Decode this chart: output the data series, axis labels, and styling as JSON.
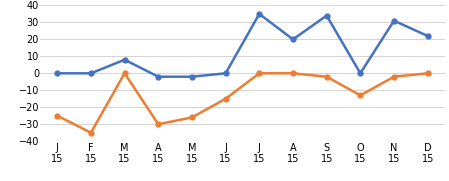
{
  "x_labels_line1": [
    "J",
    "F",
    "M",
    "A",
    "M",
    "J",
    "J",
    "A",
    "S",
    "O",
    "N",
    "D"
  ],
  "x_labels_line2": [
    "15",
    "15",
    "15",
    "15",
    "15",
    "15",
    "15",
    "15",
    "15",
    "15",
    "15",
    "15"
  ],
  "blue_values": [
    0,
    0,
    8,
    -2,
    -2,
    0,
    35,
    20,
    34,
    0,
    31,
    22
  ],
  "orange_values": [
    -25,
    -35,
    0,
    -30,
    -26,
    -15,
    0,
    0,
    -2,
    -13,
    -2,
    0
  ],
  "blue_color": "#4472C4",
  "orange_color": "#ED7D31",
  "ylim": [
    -40,
    40
  ],
  "yticks": [
    -40,
    -30,
    -20,
    -10,
    0,
    10,
    20,
    30,
    40
  ],
  "background_color": "#FFFFFF",
  "grid_color": "#D3D3D3",
  "marker": "o",
  "markersize": 3.5,
  "linewidth": 1.8,
  "tick_fontsize": 7
}
